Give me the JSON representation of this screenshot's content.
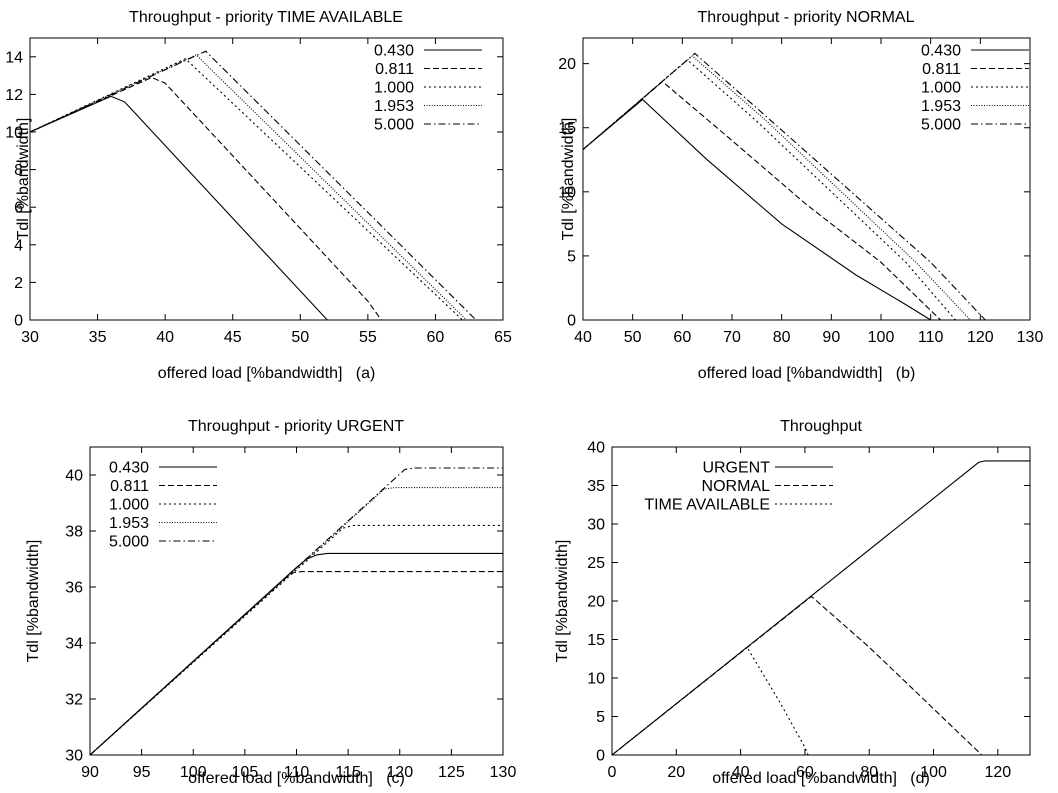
{
  "chart_data": [
    {
      "type": "line",
      "title": "Throughput - priority TIME AVAILABLE",
      "xlabel": "offered load [%bandwidth]   (a)",
      "ylabel": "Tdl [%bandwidth]",
      "xlim": [
        30,
        65
      ],
      "ylim": [
        0,
        15
      ],
      "xticks": [
        30,
        35,
        40,
        45,
        50,
        55,
        60,
        65
      ],
      "yticks": [
        0,
        2,
        4,
        6,
        8,
        10,
        12,
        14
      ],
      "legend_position": "top-right",
      "grid": false,
      "series": [
        {
          "name": "0.430",
          "dash": "solid",
          "x": [
            30,
            36,
            37,
            52,
            52.5,
            65
          ],
          "y": [
            10.0,
            11.9,
            11.6,
            0.0,
            0.0,
            0.0
          ]
        },
        {
          "name": "0.811",
          "dash": "dashed",
          "x": [
            30,
            39,
            40,
            55,
            56,
            65
          ],
          "y": [
            10.0,
            12.9,
            12.6,
            1.0,
            0.0,
            0.0
          ]
        },
        {
          "name": "1.000",
          "dash": "dotted",
          "x": [
            30,
            41.5,
            62,
            65
          ],
          "y": [
            10.0,
            13.9,
            0.0,
            0.0
          ]
        },
        {
          "name": "1.953",
          "dash": "finedot",
          "x": [
            30,
            42.3,
            62.3,
            65
          ],
          "y": [
            10.0,
            14.1,
            0.0,
            0.0
          ]
        },
        {
          "name": "5.000",
          "dash": "dashdot",
          "x": [
            30,
            43,
            63,
            65
          ],
          "y": [
            10.0,
            14.3,
            0.0,
            0.0
          ]
        }
      ]
    },
    {
      "type": "line",
      "title": "Throughput - priority NORMAL",
      "xlabel": "offered load [%bandwidth]   (b)",
      "ylabel": "Tdl [%bandwidth]",
      "xlim": [
        40,
        130
      ],
      "ylim": [
        0,
        22
      ],
      "xticks": [
        40,
        50,
        60,
        70,
        80,
        90,
        100,
        110,
        120,
        130
      ],
      "yticks": [
        0,
        5,
        10,
        15,
        20
      ],
      "legend_position": "top-right",
      "grid": false,
      "series": [
        {
          "name": "0.430",
          "dash": "solid",
          "x": [
            40,
            52,
            65,
            80,
            95,
            105,
            110
          ],
          "y": [
            13.3,
            17.2,
            12.5,
            7.5,
            3.5,
            1.2,
            0.0
          ]
        },
        {
          "name": "0.811",
          "dash": "dashed",
          "x": [
            40,
            56,
            70,
            85,
            100,
            112
          ],
          "y": [
            13.3,
            18.6,
            14.0,
            9.0,
            4.5,
            0.0
          ]
        },
        {
          "name": "1.000",
          "dash": "dotted",
          "x": [
            40,
            61,
            75,
            90,
            105,
            115
          ],
          "y": [
            13.3,
            20.3,
            15.5,
            10.0,
            4.5,
            0.0
          ]
        },
        {
          "name": "1.953",
          "dash": "finedot",
          "x": [
            40,
            62,
            77,
            92,
            107,
            118
          ],
          "y": [
            13.3,
            20.6,
            15.5,
            10.0,
            4.5,
            0.0
          ]
        },
        {
          "name": "5.000",
          "dash": "dashdot",
          "x": [
            40,
            62.5,
            78,
            94,
            110,
            121
          ],
          "y": [
            13.3,
            20.8,
            15.5,
            10.0,
            4.5,
            0.0
          ]
        }
      ]
    },
    {
      "type": "line",
      "title": "Throughput - priority URGENT",
      "xlabel": "offered load [%bandwidth]   (c)",
      "ylabel": "Tdl [%bandwidth]",
      "xlim": [
        90,
        130
      ],
      "ylim": [
        30,
        41
      ],
      "xticks": [
        90,
        95,
        100,
        105,
        110,
        115,
        120,
        125,
        130
      ],
      "yticks": [
        30,
        32,
        34,
        36,
        38,
        40
      ],
      "legend_position": "top-left",
      "grid": false,
      "series": [
        {
          "name": "0.430",
          "dash": "solid",
          "x": [
            90,
            110,
            111,
            112,
            113,
            130
          ],
          "y": [
            30.0,
            36.7,
            37.0,
            37.15,
            37.2,
            37.2
          ]
        },
        {
          "name": "0.811",
          "dash": "dashed",
          "x": [
            90,
            109.5,
            110.5,
            130
          ],
          "y": [
            30.0,
            36.5,
            36.55,
            36.55
          ]
        },
        {
          "name": "1.000",
          "dash": "dotted",
          "x": [
            90,
            114.5,
            115.5,
            130
          ],
          "y": [
            30.0,
            38.1,
            38.2,
            38.2
          ]
        },
        {
          "name": "1.953",
          "dash": "finedot",
          "x": [
            90,
            118.5,
            119.5,
            130
          ],
          "y": [
            30.0,
            39.5,
            39.55,
            39.55
          ]
        },
        {
          "name": "5.000",
          "dash": "dashdot",
          "x": [
            90,
            120.5,
            121.5,
            130
          ],
          "y": [
            30.0,
            40.2,
            40.25,
            40.25
          ]
        }
      ]
    },
    {
      "type": "line",
      "title": "Throughput",
      "xlabel": "offered load [%bandwidth]   (d)",
      "ylabel": "Tdl [%bandwidth]",
      "xlim": [
        0,
        130
      ],
      "ylim": [
        0,
        40
      ],
      "xticks": [
        0,
        20,
        40,
        60,
        80,
        100,
        120
      ],
      "yticks": [
        0,
        5,
        10,
        15,
        20,
        25,
        30,
        35,
        40
      ],
      "legend_position": "top-left",
      "grid": false,
      "series": [
        {
          "name": "URGENT",
          "dash": "solid",
          "x": [
            0,
            114,
            116,
            130
          ],
          "y": [
            0.0,
            38.0,
            38.2,
            38.2
          ]
        },
        {
          "name": "NORMAL",
          "dash": "dashed",
          "x": [
            0,
            62,
            80,
            95,
            105,
            115,
            130
          ],
          "y": [
            0.0,
            20.6,
            14.0,
            8.0,
            4.0,
            0.0,
            0.0
          ]
        },
        {
          "name": "TIME AVAILABLE",
          "dash": "dotted",
          "x": [
            0,
            42,
            52,
            60,
            61,
            130
          ],
          "y": [
            0.0,
            14.0,
            7.0,
            1.0,
            0.0,
            0.0
          ]
        }
      ]
    }
  ]
}
